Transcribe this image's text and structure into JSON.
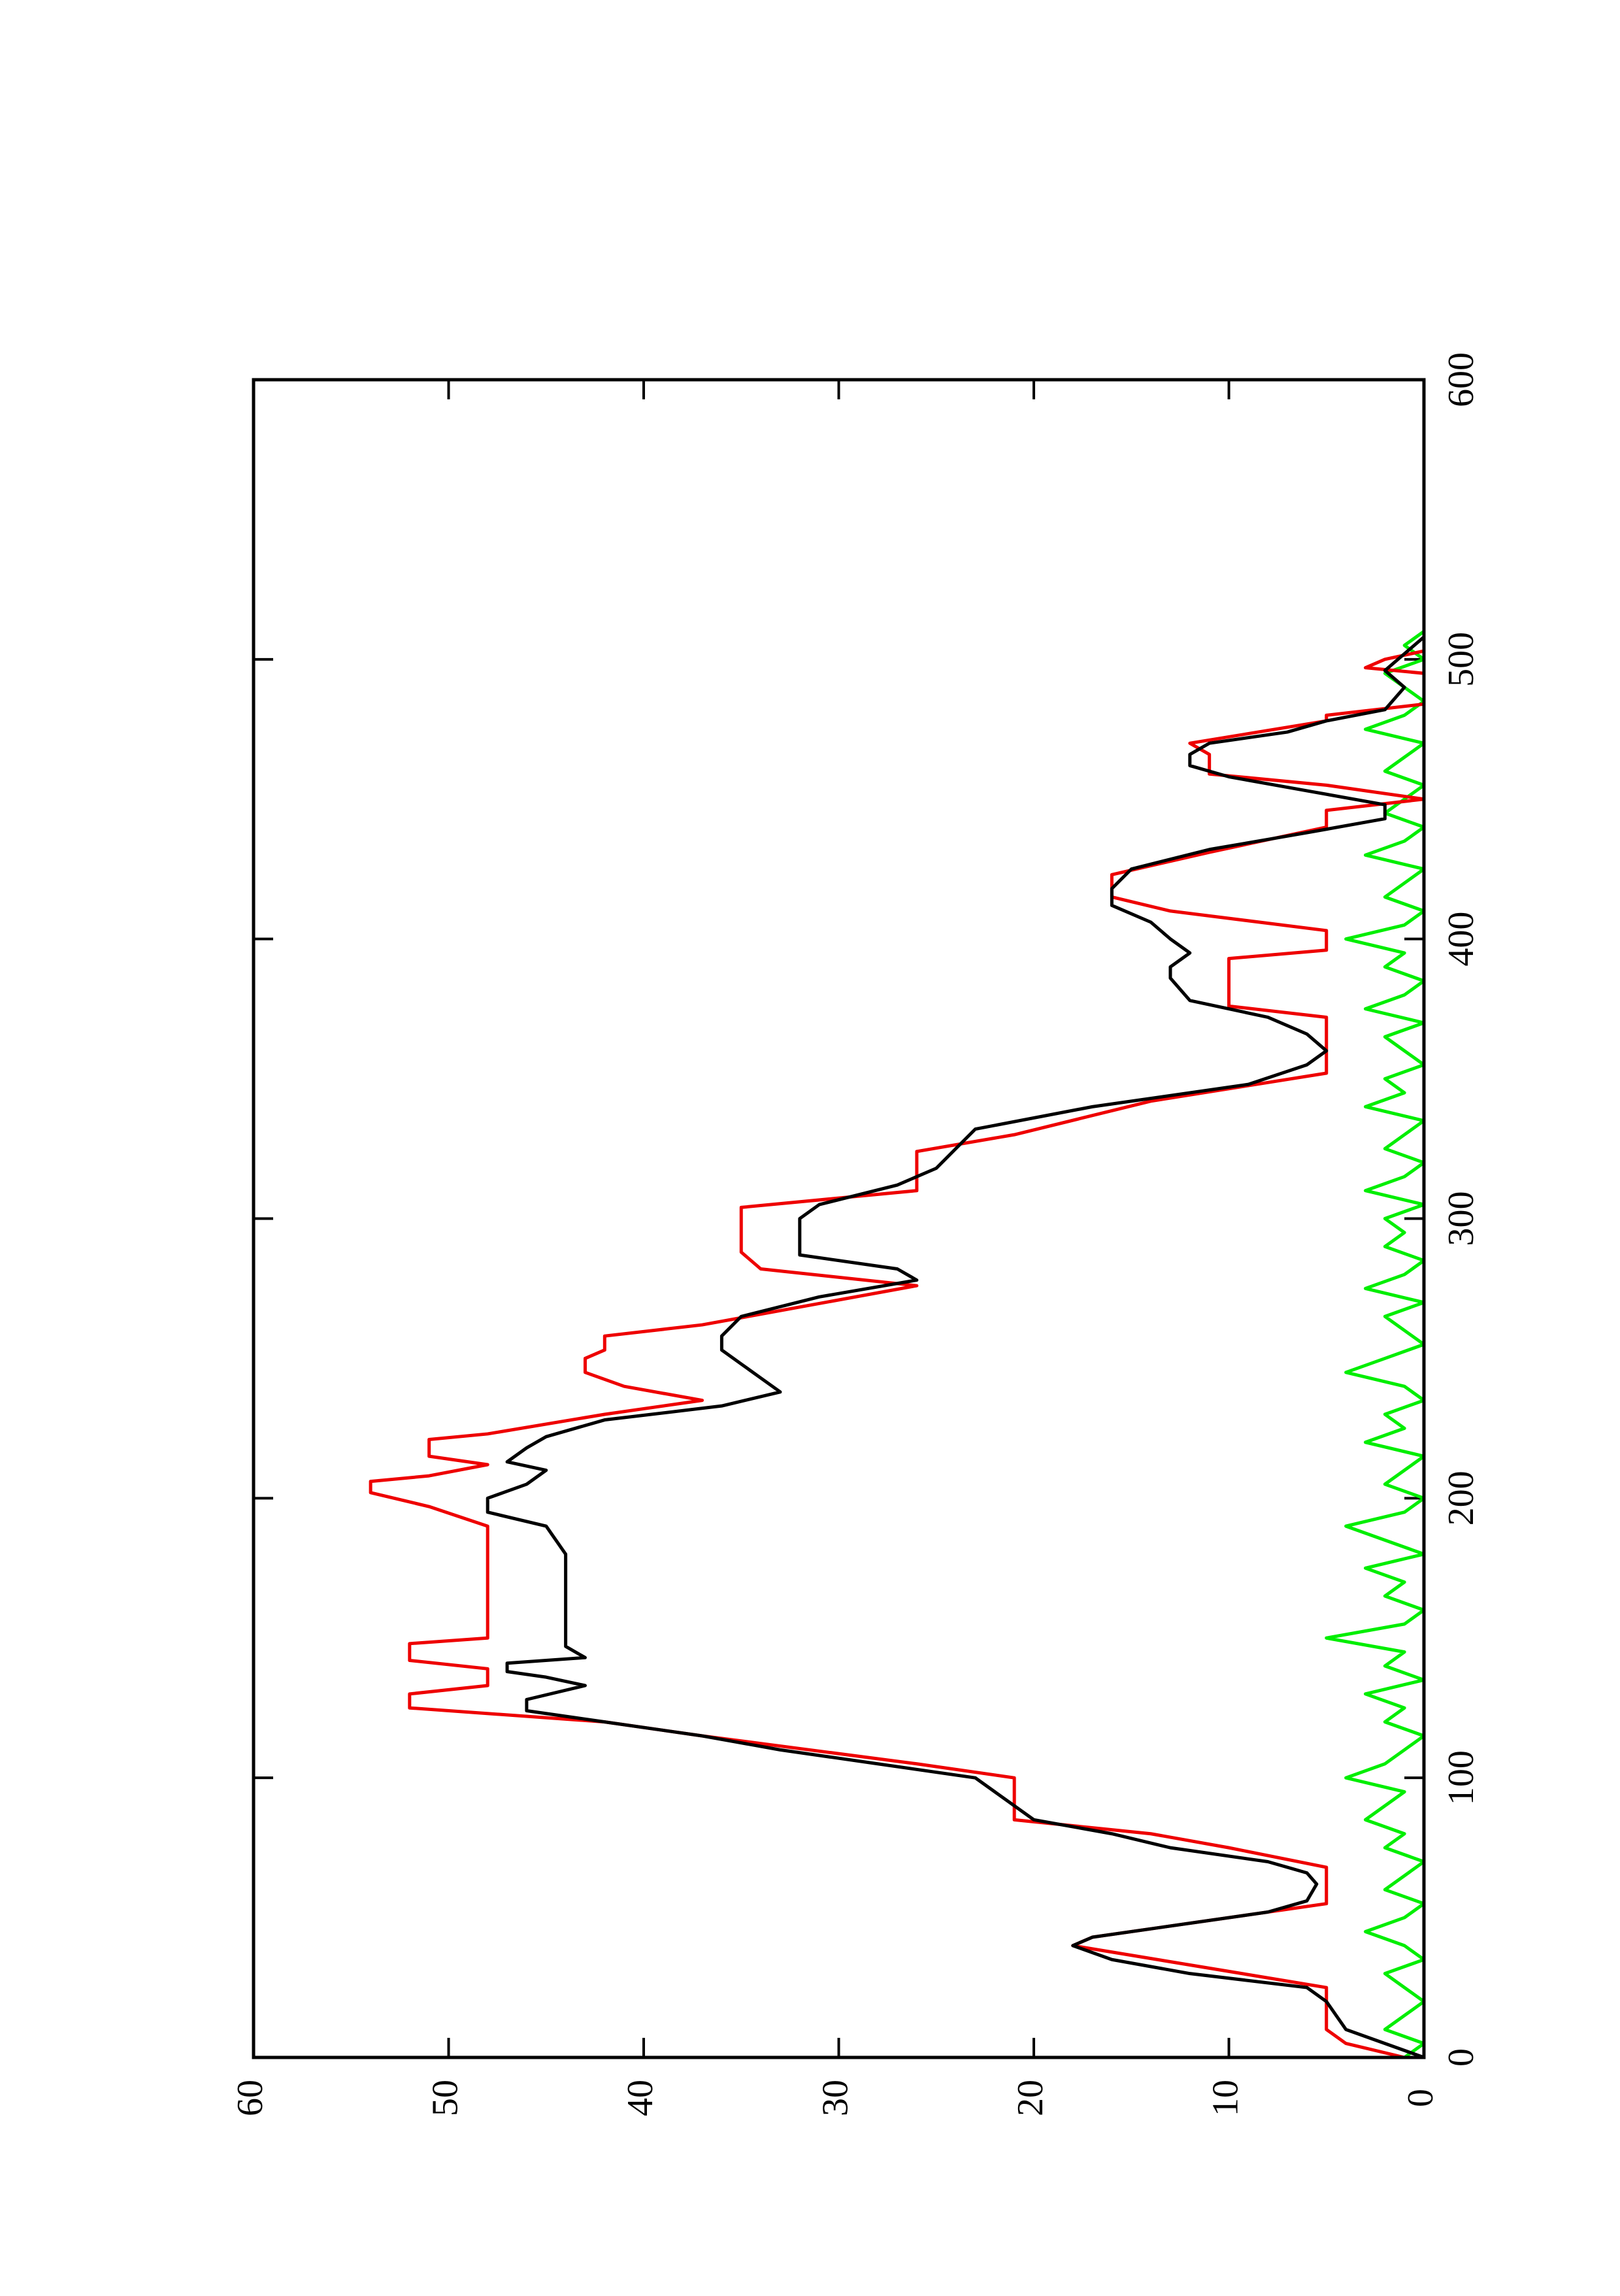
{
  "chart_data": {
    "type": "line",
    "xlim": [
      0,
      600
    ],
    "xticks": [
      0,
      100,
      200,
      300,
      400,
      500,
      600
    ],
    "ylim": [
      0,
      60
    ],
    "yticks": [
      0,
      10,
      20,
      30,
      40,
      50,
      60
    ],
    "rotated": true,
    "series": [
      {
        "color": "#00ee00",
        "x": [
          0,
          5,
          10,
          15,
          20,
          25,
          30,
          35,
          40,
          45,
          50,
          55,
          60,
          65,
          70,
          75,
          80,
          85,
          90,
          95,
          100,
          105,
          110,
          115,
          120,
          125,
          130,
          135,
          140,
          145,
          150,
          155,
          160,
          165,
          170,
          175,
          180,
          185,
          190,
          195,
          200,
          205,
          210,
          215,
          220,
          225,
          230,
          235,
          240,
          245,
          250,
          255,
          260,
          265,
          270,
          275,
          280,
          285,
          290,
          295,
          300,
          305,
          310,
          315,
          320,
          325,
          330,
          335,
          340,
          345,
          350,
          355,
          360,
          365,
          370,
          375,
          380,
          385,
          390,
          395,
          400,
          405,
          410,
          415,
          420,
          425,
          430,
          435,
          440,
          445,
          450,
          455,
          460,
          465,
          470,
          475,
          480,
          485,
          490,
          495,
          500,
          505,
          510
        ],
        "values": [
          1,
          0,
          2,
          1,
          0,
          1,
          2,
          0,
          1,
          3,
          1,
          0,
          2,
          1,
          0,
          2,
          1,
          3,
          2,
          1,
          4,
          2,
          1,
          0,
          2,
          1,
          3,
          0,
          2,
          1,
          5,
          1,
          0,
          2,
          1,
          3,
          0,
          2,
          4,
          1,
          0,
          2,
          1,
          0,
          3,
          1,
          2,
          0,
          1,
          4,
          2,
          0,
          1,
          2,
          0,
          3,
          1,
          0,
          2,
          1,
          2,
          0,
          3,
          1,
          0,
          2,
          1,
          0,
          3,
          1,
          2,
          0,
          1,
          2,
          0,
          3,
          1,
          0,
          2,
          1,
          4,
          1,
          0,
          2,
          1,
          0,
          3,
          1,
          0,
          2,
          1,
          0,
          2,
          1,
          0,
          3,
          1,
          0,
          1,
          2,
          0,
          1,
          0
        ]
      },
      {
        "color": "#ee0000",
        "x": [
          0,
          5,
          10,
          25,
          40,
          43,
          55,
          68,
          75,
          80,
          85,
          100,
          105,
          115,
          120,
          125,
          130,
          133,
          139,
          142,
          148,
          150,
          190,
          197,
          202,
          206,
          208,
          212,
          215,
          221,
          223,
          230,
          235,
          240,
          245,
          250,
          253,
          258,
          262,
          276,
          282,
          288,
          304,
          310,
          324,
          330,
          342,
          352,
          372,
          376,
          393,
          396,
          403,
          410,
          415,
          423,
          431,
          440,
          446,
          450,
          455,
          459,
          466,
          470,
          478,
          480,
          484,
          495,
          497,
          500,
          503
        ],
        "values": [
          1,
          4,
          5,
          5,
          18,
          17,
          5,
          5,
          10,
          14,
          21,
          21,
          26,
          37,
          42,
          52,
          52,
          48,
          48,
          52,
          52,
          48,
          48,
          51,
          54,
          54,
          51,
          48,
          51,
          51,
          48,
          42,
          37,
          41,
          43,
          43,
          42,
          42,
          37,
          26,
          34,
          35,
          35,
          26,
          26,
          21,
          14,
          5,
          5,
          10,
          10,
          5,
          5,
          13,
          16,
          16,
          11,
          5,
          5,
          0,
          5,
          11,
          11,
          12,
          5,
          5,
          0,
          0,
          3,
          2,
          0
        ]
      },
      {
        "color": "#000000",
        "x": [
          0,
          10,
          20,
          25,
          30,
          35,
          40,
          43,
          48,
          52,
          56,
          62,
          66,
          70,
          75,
          80,
          85,
          90,
          95,
          100,
          105,
          110,
          115,
          120,
          124,
          128,
          133,
          136,
          138,
          141,
          143,
          147,
          152,
          160,
          170,
          180,
          190,
          195,
          200,
          205,
          210,
          213,
          218,
          222,
          228,
          233,
          238,
          243,
          248,
          253,
          258,
          265,
          272,
          278,
          282,
          287,
          292,
          300,
          305,
          312,
          318,
          325,
          332,
          340,
          348,
          355,
          360,
          366,
          372,
          378,
          386,
          390,
          395,
          400,
          406,
          412,
          418,
          425,
          432,
          438,
          443,
          448,
          453,
          458,
          462,
          466,
          470,
          474,
          478,
          482,
          490,
          496,
          502,
          508
        ],
        "values": [
          0,
          4,
          5,
          6,
          12,
          16,
          18,
          17,
          12,
          8,
          6,
          5.5,
          6,
          8,
          13,
          16,
          20,
          21,
          22,
          23,
          28,
          33,
          37,
          42,
          46,
          46,
          43,
          45,
          47,
          47,
          43,
          44,
          44,
          44,
          44,
          44,
          45,
          48,
          48,
          46,
          45,
          47,
          46,
          45,
          42,
          36,
          33,
          34,
          35,
          36,
          36,
          35,
          31,
          26,
          27,
          32,
          32,
          32,
          31,
          27,
          25,
          24,
          23,
          17,
          9,
          6,
          5,
          6,
          8,
          12,
          13,
          13,
          12,
          13,
          14,
          16,
          16,
          15,
          11,
          6,
          2,
          2,
          6,
          10,
          12,
          12,
          11,
          7,
          5,
          2,
          1,
          2,
          1,
          0
        ]
      }
    ]
  }
}
